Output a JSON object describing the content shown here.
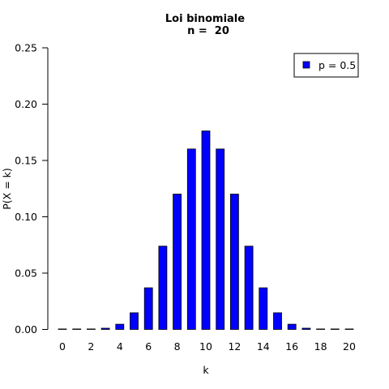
{
  "chart_data": {
    "type": "bar",
    "title": "Loi binomiale",
    "subtitle": "n =  20",
    "xlabel": "k",
    "ylabel": "P(X = k)",
    "xlim": [
      -1,
      20.9
    ],
    "ylim": [
      0,
      0.25
    ],
    "xticks": [
      "0",
      "2",
      "4",
      "6",
      "8",
      "10",
      "12",
      "14",
      "16",
      "18",
      "20"
    ],
    "yticks": [
      "0.00",
      "0.05",
      "0.10",
      "0.15",
      "0.20",
      "0.25"
    ],
    "grid": false,
    "legend_position": "top-right",
    "series": [
      {
        "name": "p = 0.5",
        "color": "#0000ff",
        "x": [
          0,
          1,
          2,
          3,
          4,
          5,
          6,
          7,
          8,
          9,
          10,
          11,
          12,
          13,
          14,
          15,
          16,
          17,
          18,
          19,
          20
        ],
        "values": [
          1e-06,
          1.9e-05,
          0.000181,
          0.001087,
          0.004621,
          0.014786,
          0.036964,
          0.073929,
          0.120134,
          0.160179,
          0.176197,
          0.160179,
          0.120134,
          0.073929,
          0.036964,
          0.014786,
          0.004621,
          0.001087,
          0.000181,
          1.9e-05,
          1e-06
        ]
      }
    ]
  }
}
